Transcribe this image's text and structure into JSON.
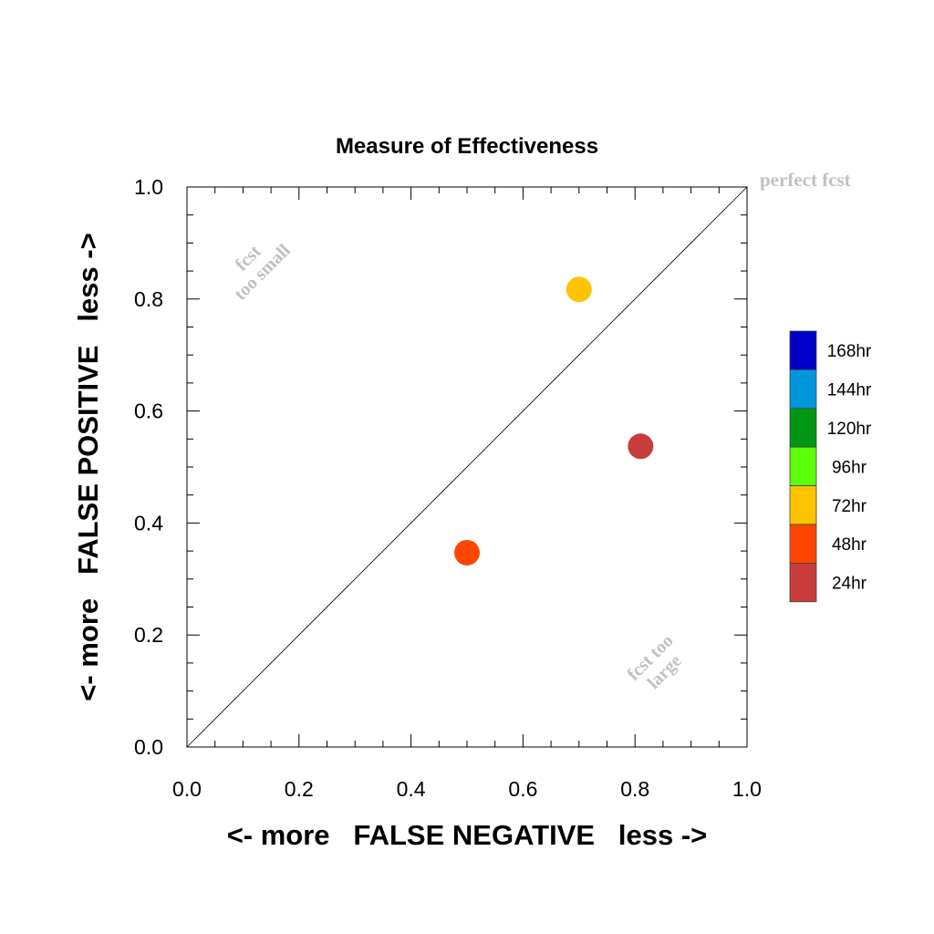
{
  "chart_data": {
    "type": "scatter",
    "title": "Measure of Effectiveness",
    "xlabel": "<- more   FALSE NEGATIVE   less ->",
    "ylabel": "<- more   FALSE POSITIVE   less ->",
    "xlim": [
      0.0,
      1.0
    ],
    "ylim": [
      0.0,
      1.0
    ],
    "xticks": [
      "0.0",
      "0.2",
      "0.4",
      "0.6",
      "0.8",
      "1.0"
    ],
    "yticks": [
      "0.0",
      "0.2",
      "0.4",
      "0.6",
      "0.8",
      "1.0"
    ],
    "grid": false,
    "annotations": {
      "perfect": "perfect fcst",
      "too_small_1": "fcst",
      "too_small_2": "too small",
      "too_large_1": "fcst too",
      "too_large_2": "large"
    },
    "legend": {
      "placement": "right",
      "entries": [
        {
          "label": "168hr",
          "color": "#0000c8"
        },
        {
          "label": "144hr",
          "color": "#0096dc"
        },
        {
          "label": "120hr",
          "color": "#009614"
        },
        {
          "label": "96hr",
          "color": "#5aff0a"
        },
        {
          "label": "72hr",
          "color": "#ffc300"
        },
        {
          "label": "48hr",
          "color": "#ff4600"
        },
        {
          "label": "24hr",
          "color": "#c83c3c"
        }
      ]
    },
    "points": [
      {
        "series": "72hr",
        "x": 0.7,
        "y": 0.817,
        "color": "#ffc300"
      },
      {
        "series": "24hr",
        "x": 0.81,
        "y": 0.537,
        "color": "#c83c3c"
      },
      {
        "series": "48hr",
        "x": 0.5,
        "y": 0.347,
        "color": "#ff4600"
      }
    ]
  }
}
